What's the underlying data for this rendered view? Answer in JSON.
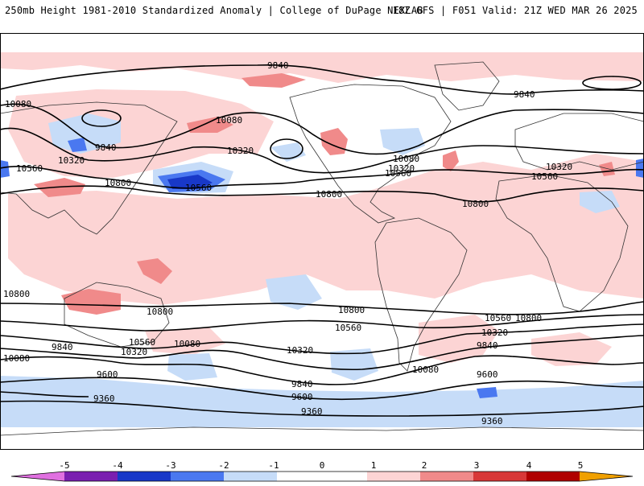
{
  "header": {
    "title": "250mb Height 1981-2010 Standardized Anomaly | College of DuPage NEXLAB",
    "run_info": "18Z GFS | F051 Valid: 21Z WED MAR 26 2025"
  },
  "colors": {
    "neg5": "#e070e0",
    "neg4": "#7a1fb0",
    "neg3": "#1838c8",
    "neg2": "#4a78f0",
    "neg1": "#c6dcf8",
    "pos1": "#fcd4d4",
    "pos2": "#f08a8a",
    "pos3": "#d83838",
    "pos4": "#b00000",
    "pos5": "#f0a000",
    "contour": "#000000",
    "border": "#333333"
  },
  "colorbar": {
    "ticks": [
      "-5",
      "-4",
      "-3",
      "-2",
      "-1",
      "0",
      "1",
      "2",
      "3",
      "4",
      "5"
    ]
  },
  "contour_labels": {
    "l9840a": "9840",
    "l9840b": "9840",
    "l9840c": "9840",
    "l10080a": "10080",
    "l10080b": "10080",
    "l10080c": "10080",
    "l10320a": "10320",
    "l10320b": "10320",
    "l10320c": "10320",
    "l10320d": "10320",
    "l10560a": "10560",
    "l10560b": "10560",
    "l10560c": "10560",
    "l10560d": "10560",
    "l10800a": "10800",
    "l10800b": "10800",
    "l10800c": "10800",
    "l10800d": "10800",
    "s10800a": "10800",
    "s10800b": "10800",
    "s10800c": "10800",
    "s10560a": "10560",
    "s10560b": "10560",
    "s10560c": "10560",
    "s10320a": "10320",
    "s10320b": "10320",
    "s10320c": "10320",
    "s10080a": "10080",
    "s10080b": "10080",
    "s10080c": "10080",
    "s9840a": "9840",
    "s9840b": "9840",
    "s9840c": "9840",
    "s9600a": "9600",
    "s9600b": "9600",
    "s9600c": "9600",
    "s9360a": "9360",
    "s9360b": "9360",
    "s9360c": "9360"
  }
}
